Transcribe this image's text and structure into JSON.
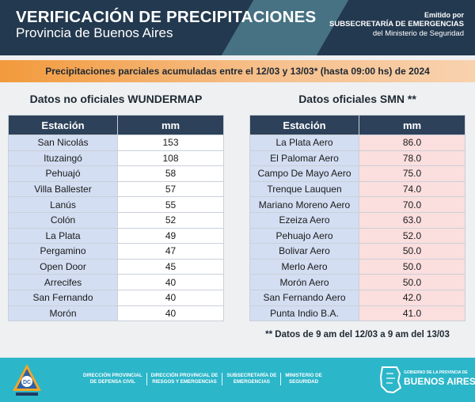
{
  "header": {
    "title": "VERIFICACIÓN DE PRECIPITACIONES",
    "subtitle": "Provincia de Buenos Aires",
    "issuer_line1": "Emitido por",
    "issuer_line2": "SUBSECRETARÍA DE EMERGENCIAS",
    "issuer_line3": "del Ministerio de Seguridad"
  },
  "banner": "Precipitaciones parciales acumuladas entre el 12/03 y 13/03* (hasta 09:00 hs) de 2024",
  "unofficial": {
    "title": "Datos no oficiales WUNDERMAP",
    "col_station": "Estación",
    "col_mm": "mm",
    "rows": [
      {
        "station": "San Nicolás",
        "mm": "153"
      },
      {
        "station": "Ituzaingó",
        "mm": "108"
      },
      {
        "station": "Pehuajó",
        "mm": "58"
      },
      {
        "station": "Villa Ballester",
        "mm": "57"
      },
      {
        "station": "Lanús",
        "mm": "55"
      },
      {
        "station": "Colón",
        "mm": "52"
      },
      {
        "station": "La Plata",
        "mm": "49"
      },
      {
        "station": "Pergamino",
        "mm": "47"
      },
      {
        "station": "Open Door",
        "mm": "45"
      },
      {
        "station": "Arrecifes",
        "mm": "40"
      },
      {
        "station": "San Fernando",
        "mm": "40"
      },
      {
        "station": "Morón",
        "mm": "40"
      }
    ]
  },
  "official": {
    "title": "Datos oficiales SMN **",
    "col_station": "Estación",
    "col_mm": "mm",
    "rows": [
      {
        "station": "La Plata Aero",
        "mm": "86.0"
      },
      {
        "station": "El Palomar Aero",
        "mm": "78.0"
      },
      {
        "station": "Campo De Mayo Aero",
        "mm": "75.0"
      },
      {
        "station": "Trenque Lauquen",
        "mm": "74.0"
      },
      {
        "station": "Mariano Moreno Aero",
        "mm": "70.0"
      },
      {
        "station": "Ezeiza Aero",
        "mm": "63.0"
      },
      {
        "station": "Pehuajo Aero",
        "mm": "52.0"
      },
      {
        "station": "Bolivar Aero",
        "mm": "50.0"
      },
      {
        "station": "Merlo Aero",
        "mm": "50.0"
      },
      {
        "station": "Morón Aero",
        "mm": "50.0"
      },
      {
        "station": "San Fernando Aero",
        "mm": "42.0"
      },
      {
        "station": "Punta Indio B.A.",
        "mm": "41.0"
      }
    ],
    "note": "** Datos de 9 am del 12/03 a 9 am del 13/03"
  },
  "footer": {
    "logo_text": "DC",
    "orgs": [
      {
        "line1": "DIRECCIÓN PROVINCIAL",
        "line2": "DE DEFENSA CIVIL"
      },
      {
        "line1": "DIRECCIÓN PROVINCIAL DE",
        "line2": "RIESGOS Y EMERGENCIAS"
      },
      {
        "line1": "SUBSECRETARÍA DE",
        "line2": "EMERGENCIAS"
      },
      {
        "line1": "MINISTERIO DE",
        "line2": "SEGURIDAD"
      }
    ],
    "gov_line": "GOBIERNO DE LA PROVINCIA DE",
    "province": "BUENOS AIRES"
  },
  "colors": {
    "header_bg": "#23394f",
    "banner_orange": "#f29a3c",
    "table_header": "#2d425a",
    "station_cell": "#d3def2",
    "official_mm_cell": "#fbdede",
    "footer_bg": "#2cb6c9"
  }
}
